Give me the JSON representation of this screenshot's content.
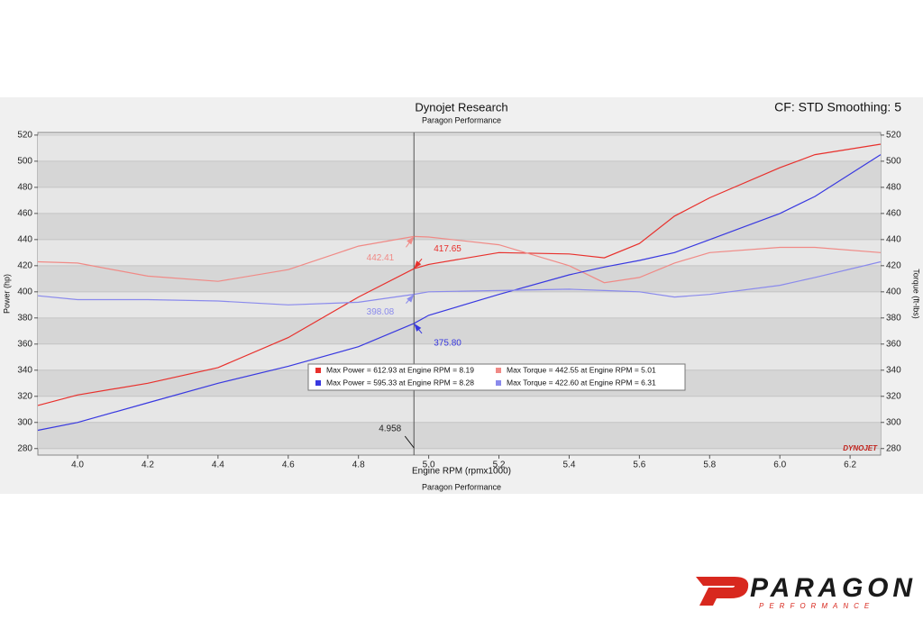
{
  "chart_data": {
    "type": "line",
    "title": "Dynojet Research",
    "subtitle": "Paragon Performance",
    "corner_note": "CF: STD Smoothing: 5",
    "xlabel": "Engine RPM (rpmx1000)",
    "ylabel": "Power (hp)",
    "y2label": "Torque (ft-lbs)",
    "footer": "Paragon Performance",
    "watermark": "DYNOJET",
    "grid": true,
    "xlim": [
      3.887,
      6.287
    ],
    "xticks": [
      {
        "value": 4,
        "label": "4.0"
      },
      4.2,
      4.4,
      4.6,
      4.8,
      {
        "value": 5,
        "label": "5.0"
      },
      5.2,
      5.4,
      5.6,
      5.8,
      {
        "value": 6,
        "label": "6.0"
      },
      6.2
    ],
    "ylim": [
      275,
      522
    ],
    "yticks": [
      280,
      300,
      320,
      340,
      360,
      380,
      400,
      420,
      440,
      460,
      480,
      500,
      520
    ],
    "y2lim": [
      275,
      522
    ],
    "y2ticks": [
      280,
      300,
      320,
      340,
      360,
      380,
      400,
      420,
      440,
      460,
      480,
      500,
      520
    ],
    "x": [
      3.887,
      4.0,
      4.2,
      4.4,
      4.6,
      4.8,
      4.958,
      5.0,
      5.2,
      5.4,
      5.5,
      5.6,
      5.7,
      5.8,
      6.0,
      6.1,
      6.287
    ],
    "series": [
      {
        "name": "Max Power = 612.93 at Engine RPM = 8.19",
        "color": "#e8302c",
        "values": [
          313,
          321,
          330,
          342,
          365,
          396,
          417.65,
          421,
          430,
          429,
          426,
          437,
          458,
          472,
          495,
          505,
          513
        ]
      },
      {
        "name": "Max Torque = 442.55 at Engine RPM = 5.01",
        "color": "#f08a86",
        "axis": "y2",
        "values": [
          423,
          422,
          412,
          408,
          417,
          435,
          442.41,
          442,
          436,
          420,
          407,
          411,
          422,
          430,
          434,
          434,
          430
        ]
      },
      {
        "name": "Max Power = 595.33 at Engine RPM = 8.28",
        "color": "#3838e0",
        "values": [
          294,
          300,
          315,
          330,
          343,
          358,
          375.8,
          382,
          398,
          413,
          419,
          424,
          430,
          440,
          460,
          473,
          505
        ]
      },
      {
        "name": "Max Torque = 422.60 at Engine RPM = 6.31",
        "color": "#8a8aec",
        "axis": "y2",
        "values": [
          397,
          394,
          394,
          393,
          390,
          392,
          398.08,
          400,
          401,
          402,
          401,
          400,
          396,
          398,
          405,
          411,
          423
        ]
      }
    ],
    "cursor": {
      "x": 4.958,
      "values": [
        417.65,
        442.41,
        375.8,
        398.08
      ],
      "value_labels": [
        "417.65",
        "442.41",
        "375.80",
        "398.08"
      ]
    }
  },
  "logo": {
    "name": "PARAGON",
    "tagline": "PERFORMANCE"
  }
}
